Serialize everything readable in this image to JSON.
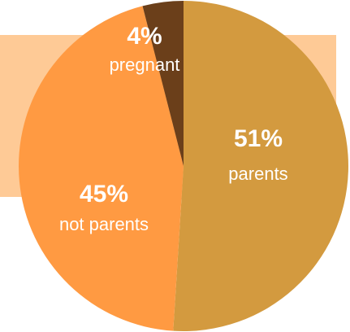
{
  "chart_data": {
    "type": "pie",
    "slices": [
      {
        "value": 51,
        "percent_label": "51%",
        "name": "parents",
        "color": "#D39A3F"
      },
      {
        "value": 45,
        "percent_label": "45%",
        "name": "not parents",
        "color": "#FF9A42"
      },
      {
        "value": 4,
        "percent_label": "4%",
        "name": "pregnant",
        "color": "#6B3F1A"
      }
    ]
  },
  "colors": {
    "backdrop": "#FECA96",
    "background": "#FFFFFF"
  }
}
